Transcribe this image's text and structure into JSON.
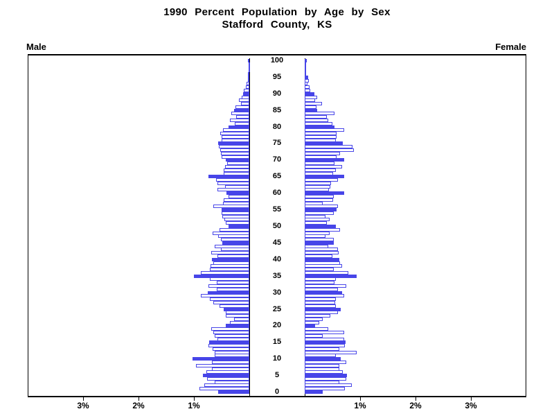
{
  "title": {
    "line1": "1990 Percent Population by Age by Sex",
    "line2": "Stafford County, KS"
  },
  "headers": {
    "male": "Male",
    "female": "Female"
  },
  "colors": {
    "bar": "#4745e8",
    "frame": "#000000",
    "text": "#000000"
  },
  "axis": {
    "age_ticks": [
      100,
      95,
      90,
      85,
      80,
      75,
      70,
      65,
      60,
      55,
      50,
      45,
      40,
      35,
      30,
      25,
      20,
      15,
      10,
      5,
      0
    ],
    "pct_ticks": [
      1,
      2,
      3
    ],
    "pct_suffix": "%"
  },
  "chart_data": {
    "type": "bar",
    "subtype": "population-pyramid",
    "title": "1990 Percent Population by Age by Sex",
    "subtitle": "Stafford County, KS",
    "orientation": "horizontal",
    "x_unit": "percent of total population",
    "x_range_each_side": [
      0,
      4
    ],
    "age_min": 0,
    "age_max": 100,
    "solid_fill_rule": "ages divisible by 5 are solid blue; all other ages are white with blue outline",
    "legend": "left side = Male, right side = Female",
    "series": [
      {
        "name": "Male",
        "side": "left",
        "values": [
          0.56,
          0.9,
          0.81,
          0.63,
          0.76,
          0.84,
          0.77,
          0.67,
          0.96,
          0.68,
          1.03,
          0.63,
          0.63,
          0.66,
          0.74,
          0.73,
          0.58,
          0.62,
          0.65,
          0.69,
          0.43,
          0.35,
          0.27,
          0.42,
          0.43,
          0.46,
          0.54,
          0.65,
          0.71,
          0.88,
          0.75,
          0.59,
          0.74,
          0.59,
          0.71,
          1.0,
          0.88,
          0.71,
          0.7,
          0.65,
          0.68,
          0.58,
          0.69,
          0.51,
          0.63,
          0.49,
          0.51,
          0.56,
          0.66,
          0.54,
          0.37,
          0.42,
          0.45,
          0.49,
          0.5,
          0.5,
          0.65,
          0.47,
          0.46,
          0.38,
          0.41,
          0.58,
          0.44,
          0.58,
          0.6,
          0.74,
          0.46,
          0.46,
          0.44,
          0.4,
          0.43,
          0.5,
          0.51,
          0.53,
          0.55,
          0.56,
          0.5,
          0.5,
          0.53,
          0.48,
          0.38,
          0.26,
          0.35,
          0.24,
          0.33,
          0.28,
          0.25,
          0.15,
          0.19,
          0.14,
          0.11,
          0.1,
          0.06,
          0.05,
          0.02,
          0.03,
          0.02,
          0.01,
          0.01,
          0.01,
          0.03
        ]
      },
      {
        "name": "Female",
        "side": "right",
        "values": [
          0.33,
          0.72,
          0.85,
          0.63,
          0.75,
          0.76,
          0.69,
          0.63,
          0.63,
          0.75,
          0.65,
          0.56,
          0.94,
          0.63,
          0.72,
          0.74,
          0.71,
          0.33,
          0.71,
          0.42,
          0.19,
          0.26,
          0.33,
          0.46,
          0.6,
          0.65,
          0.56,
          0.55,
          0.56,
          0.71,
          0.67,
          0.6,
          0.75,
          0.54,
          0.56,
          0.94,
          0.79,
          0.52,
          0.68,
          0.64,
          0.63,
          0.5,
          0.61,
          0.6,
          0.42,
          0.52,
          0.52,
          0.37,
          0.45,
          0.64,
          0.56,
          0.4,
          0.45,
          0.38,
          0.52,
          0.58,
          0.6,
          0.33,
          0.51,
          0.52,
          0.71,
          0.44,
          0.46,
          0.47,
          0.6,
          0.71,
          0.51,
          0.56,
          0.68,
          0.54,
          0.71,
          0.57,
          0.64,
          0.89,
          0.86,
          0.69,
          0.56,
          0.58,
          0.57,
          0.71,
          0.54,
          0.5,
          0.42,
          0.4,
          0.54,
          0.22,
          0.21,
          0.31,
          0.19,
          0.22,
          0.17,
          0.1,
          0.09,
          0.05,
          0.08,
          0.06,
          0.03,
          0.01,
          0.01,
          0.01,
          0.04
        ]
      }
    ]
  }
}
